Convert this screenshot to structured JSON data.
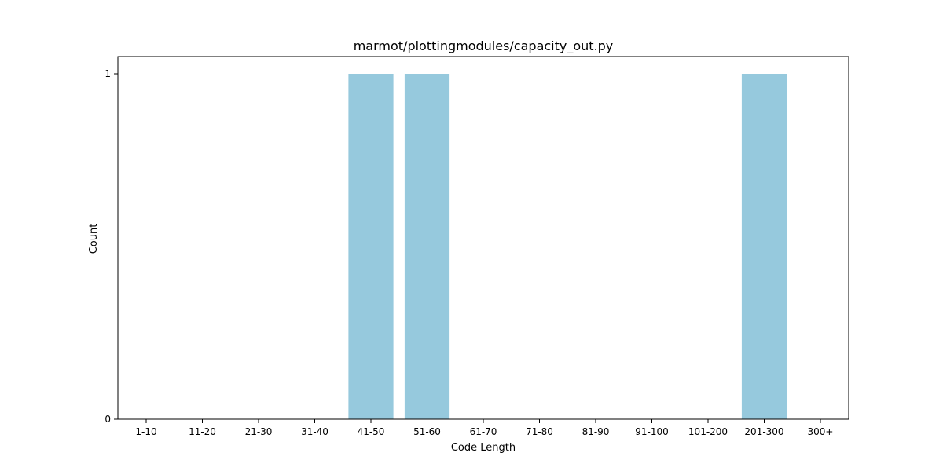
{
  "chart_data": {
    "type": "bar",
    "title": "marmot/plottingmodules/capacity_out.py",
    "xlabel": "Code Length",
    "ylabel": "Count",
    "categories": [
      "1-10",
      "11-20",
      "21-30",
      "31-40",
      "41-50",
      "51-60",
      "61-70",
      "71-80",
      "81-90",
      "91-100",
      "101-200",
      "201-300",
      "300+"
    ],
    "values": [
      0,
      0,
      0,
      0,
      1,
      1,
      0,
      0,
      0,
      0,
      0,
      1,
      0
    ],
    "ylim": [
      0,
      1
    ],
    "yticks": [
      "0",
      "1"
    ],
    "grid": false,
    "legend": "none",
    "bar_color": "#96c9dd",
    "axis_color": "#000000"
  }
}
